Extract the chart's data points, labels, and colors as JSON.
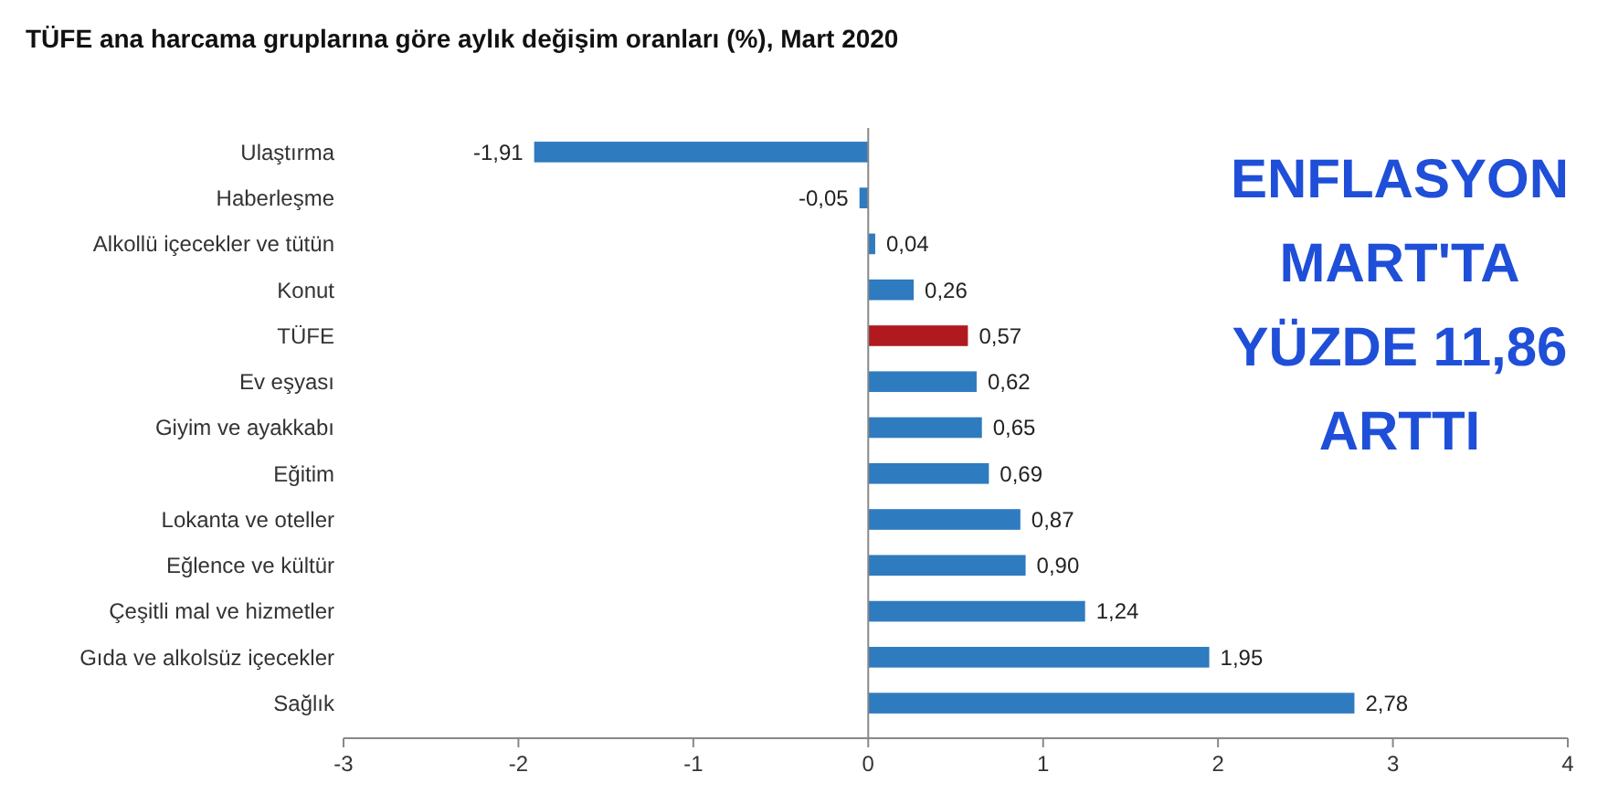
{
  "chart_data": {
    "type": "bar",
    "orientation": "horizontal",
    "title": "TÜFE ana harcama gruplarına göre aylık değişim oranları (%), Mart 2020",
    "categories": [
      "Ulaştırma",
      "Haberleşme",
      "Alkollü içecekler ve tütün",
      "Konut",
      "TÜFE",
      "Ev eşyası",
      "Giyim ve ayakkabı",
      "Eğitim",
      "Lokanta ve oteller",
      "Eğlence ve kültür",
      "Çeşitli mal ve hizmetler",
      "Gıda ve alkolsüz içecekler",
      "Sağlık"
    ],
    "values": [
      -1.91,
      -0.05,
      0.04,
      0.26,
      0.57,
      0.62,
      0.65,
      0.69,
      0.87,
      0.9,
      1.24,
      1.95,
      2.78
    ],
    "colors": [
      "#2f7bbf",
      "#2f7bbf",
      "#2f7bbf",
      "#2f7bbf",
      "#b0191e",
      "#2f7bbf",
      "#2f7bbf",
      "#2f7bbf",
      "#2f7bbf",
      "#2f7bbf",
      "#2f7bbf",
      "#2f7bbf",
      "#2f7bbf"
    ],
    "value_labels": [
      "-1,91",
      "-0,05",
      "0,04",
      "0,26",
      "0,57",
      "0,62",
      "0,65",
      "0,69",
      "0,87",
      "0,90",
      "1,24",
      "1,95",
      "2,78"
    ],
    "xlim": [
      -3,
      4
    ],
    "xticks": [
      -3,
      -2,
      -1,
      0,
      1,
      2,
      3,
      4
    ],
    "annotations": [
      "ENFLASYON\nMART'TA\nYÜZDE 11,86\nARTTI"
    ]
  }
}
